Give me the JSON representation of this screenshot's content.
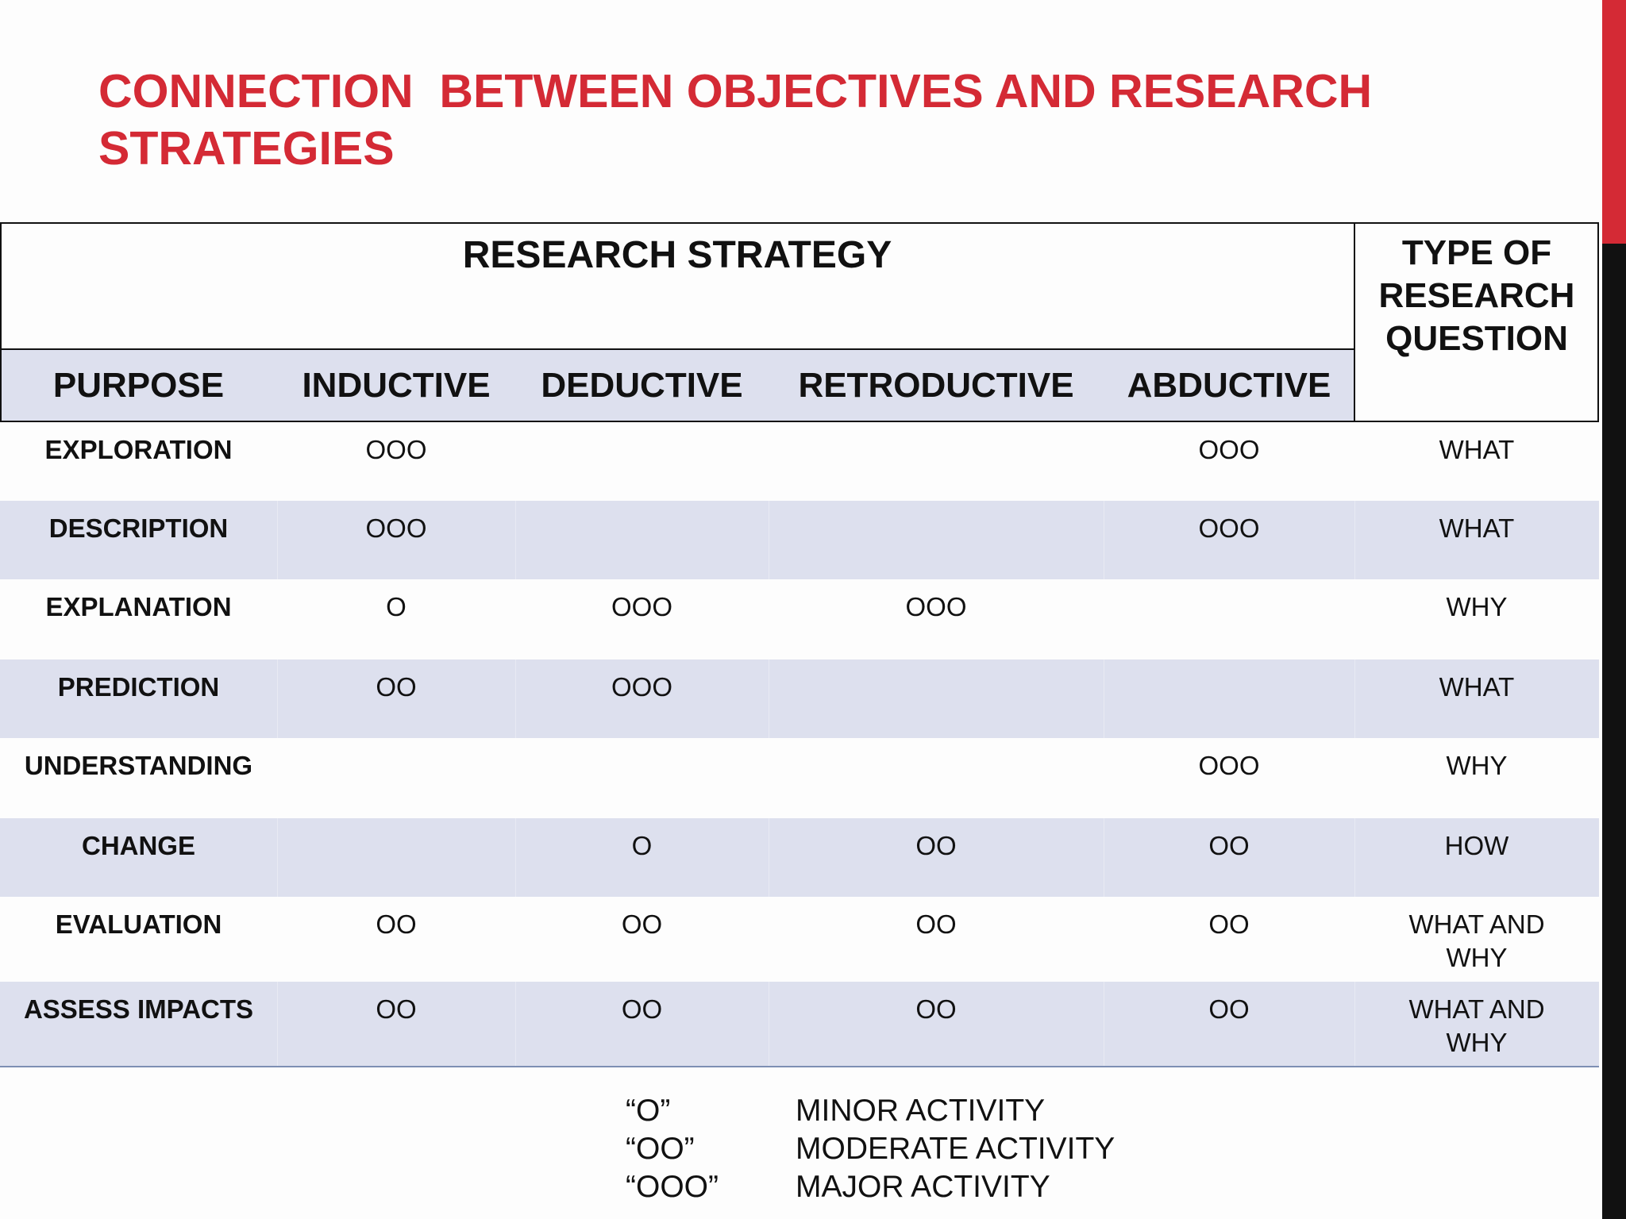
{
  "header": {
    "title_lines": [
      "CONNECTION  BETWEEN OBJECTIVES AND RESEARCH",
      "STRATEGIES"
    ]
  },
  "table": {
    "group_header": "RESEARCH STRATEGY",
    "type_header": "TYPE OF RESEARCH QUESTION",
    "columns": [
      "PURPOSE",
      "INDUCTIVE",
      "DEDUCTIVE",
      "RETRODUCTIVE",
      "ABDUCTIVE"
    ],
    "rows": [
      [
        "EXPLORATION",
        "OOO",
        null,
        null,
        "OOO",
        "WHAT"
      ],
      [
        "DESCRIPTION",
        "OOO",
        null,
        null,
        "OOO",
        "WHAT"
      ],
      [
        "EXPLANATION",
        "O",
        "OOO",
        "OOO",
        null,
        "WHY"
      ],
      [
        "PREDICTION",
        "OO",
        "OOO",
        null,
        null,
        "WHAT"
      ],
      [
        "UNDERSTANDING",
        null,
        null,
        null,
        "OOO",
        "WHY"
      ],
      [
        "CHANGE",
        null,
        "O",
        "OO",
        "OO",
        "HOW"
      ],
      [
        "EVALUATION",
        "OO",
        "OO",
        "OO",
        "OO",
        "WHAT AND WHY"
      ],
      [
        "ASSESS IMPACTS",
        "OO",
        "OO",
        "OO",
        "OO",
        "WHAT AND WHY"
      ]
    ]
  },
  "legend": {
    "items": [
      {
        "symbol": "“O”",
        "meaning": "MINOR ACTIVITY"
      },
      {
        "symbol": "“OO”",
        "meaning": "MODERATE ACTIVITY"
      },
      {
        "symbol": "“OOO”",
        "meaning": "MAJOR ACTIVITY"
      }
    ]
  }
}
